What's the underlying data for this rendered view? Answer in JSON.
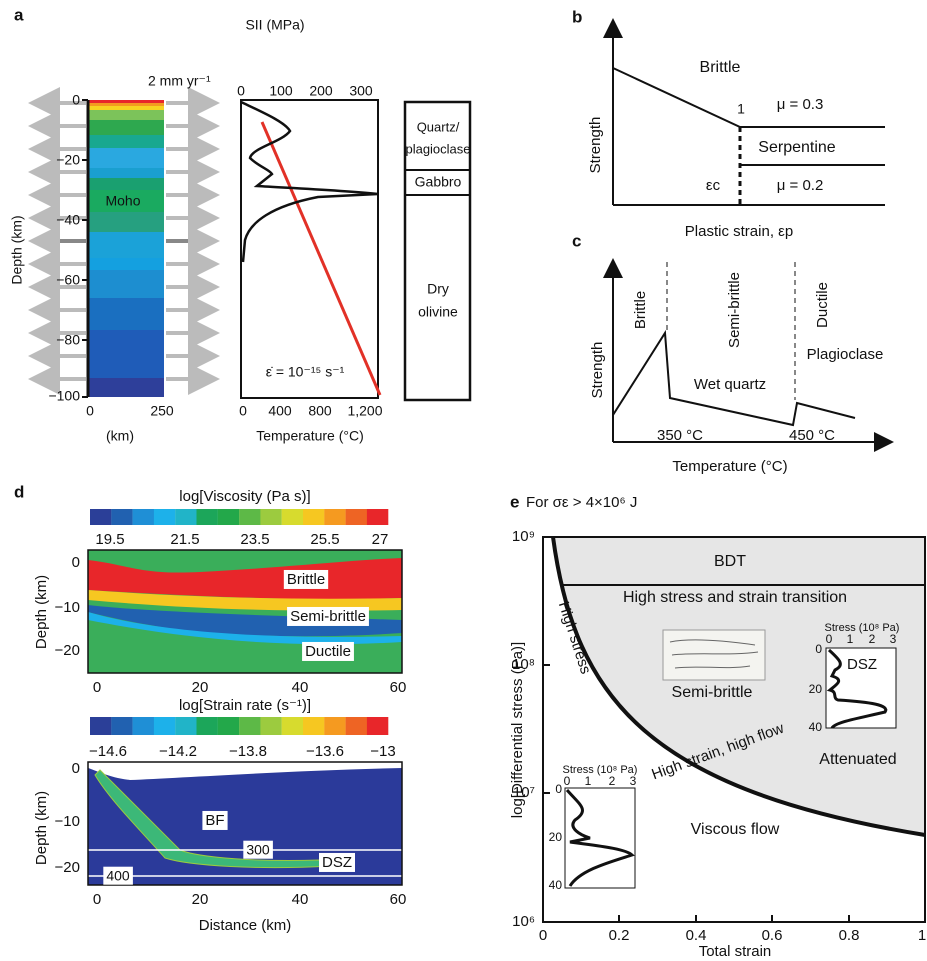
{
  "a": {
    "label": "a",
    "velocity": "2 mm yr⁻¹",
    "stress_axis": "SII (MPa)",
    "stress_ticks": [
      "0",
      "100",
      "200",
      "300"
    ],
    "depth_axis": "Depth (km)",
    "depth_ticks": [
      "0",
      "−20",
      "−40",
      "−60",
      "−80",
      "−100"
    ],
    "width_ticks": [
      "0",
      "250"
    ],
    "width_unit": "(km)",
    "moho": "Moho",
    "temp_axis": "Temperature (°C)",
    "temp_ticks": [
      "0",
      "400",
      "800",
      "1,200"
    ],
    "strain_rate": "ε̇ = 10⁻¹⁵ s⁻¹",
    "layers": [
      [
        "Quartz/",
        "plagioclase"
      ],
      [
        "Gabbro"
      ],
      [
        "Dry",
        "olivine"
      ]
    ]
  },
  "b": {
    "label": "b",
    "brittle": "Brittle",
    "y_axis": "Strength",
    "one": "1",
    "mu_high": "μ = 0.3",
    "serpentine": "Serpentine",
    "mu_low": "μ = 0.2",
    "eps_c": "εc",
    "x_axis": "Plastic strain, εp"
  },
  "c": {
    "label": "c",
    "regimes": [
      "Brittle",
      "Semi-brittle",
      "Ductile"
    ],
    "y_axis": "Strength",
    "wet_quartz": "Wet quartz",
    "plagioclase": "Plagioclase",
    "t1": "350 °C",
    "t2": "450 °C",
    "x_axis": "Temperature (°C)"
  },
  "d": {
    "label": "d",
    "viscosity_title": "log[Viscosity (Pa s)]",
    "viscosity_ticks": [
      "19.5",
      "21.5",
      "23.5",
      "25.5",
      "27"
    ],
    "strain_title": "log[Strain rate (s⁻¹)]",
    "strain_ticks": [
      "−14.6",
      "−14.2",
      "−13.8",
      "−13.6",
      "−13"
    ],
    "depth_axis": "Depth (km)",
    "depth_ticks": [
      "0",
      "−10",
      "−20"
    ],
    "x_ticks": [
      "0",
      "20",
      "40",
      "60"
    ],
    "x_axis": "Distance (km)",
    "top_labels": [
      "Brittle",
      "Semi-brittle",
      "Ductile"
    ],
    "bf": "BF",
    "iso1": "300",
    "iso2": "400",
    "dsz": "DSZ"
  },
  "e": {
    "label": "e",
    "condition": "For σε > 4×10⁶ J",
    "y_axis": "log[Differential stress (Pa)]",
    "y_ticks": [
      "10⁹",
      "10⁸",
      "10⁷",
      "10⁶"
    ],
    "x_ticks": [
      "0",
      "0.2",
      "0.4",
      "0.6",
      "0.8",
      "1"
    ],
    "x_axis": "Total strain",
    "bdt": "BDT",
    "transition": "High stress and strain transition",
    "high_stress": "High stress",
    "high_strain": "High strain, high flow",
    "semi_brittle": "Semi-brittle",
    "attenuated": "Attenuated",
    "viscous": "Viscous flow",
    "inset_top": {
      "title": "Stress (10⁸ Pa)",
      "x_ticks": [
        "0",
        "1",
        "2",
        "3"
      ],
      "y_ticks": [
        "0",
        "20",
        "40"
      ],
      "dsz": "DSZ"
    },
    "inset_bottom": {
      "title": "Stress (10⁸ Pa)",
      "x_ticks": [
        "0",
        "1",
        "2",
        "3"
      ],
      "y_ticks": [
        "0",
        "20",
        "40"
      ]
    }
  }
}
